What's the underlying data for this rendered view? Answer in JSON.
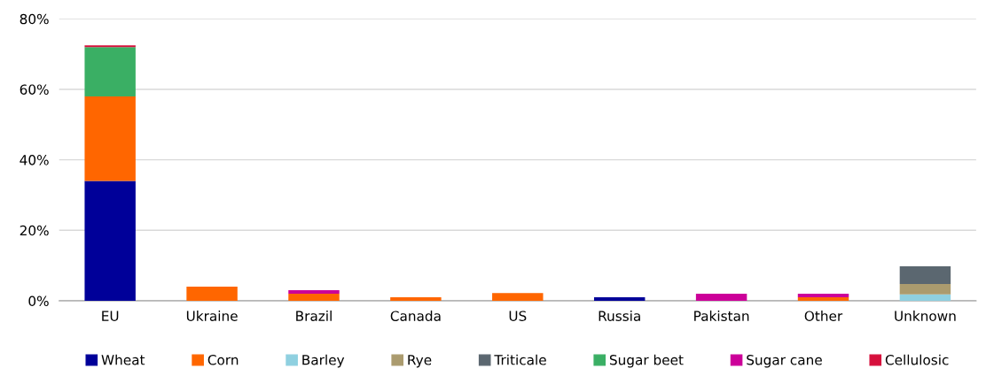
{
  "chart_data": {
    "type": "bar",
    "stacked": true,
    "categories": [
      "EU",
      "Ukraine",
      "Brazil",
      "Canada",
      "US",
      "Russia",
      "Pakistan",
      "Other",
      "Unknown"
    ],
    "series": [
      {
        "name": "Wheat",
        "color": "#000099",
        "values": [
          34,
          0,
          0,
          0,
          0,
          1,
          0,
          0,
          0
        ]
      },
      {
        "name": "Corn",
        "color": "#ff6600",
        "values": [
          24,
          4,
          2,
          1,
          2.2,
          0,
          0,
          1,
          0
        ]
      },
      {
        "name": "Barley",
        "color": "#8fd0e0",
        "values": [
          0,
          0,
          0,
          0,
          0,
          0,
          0,
          0,
          1.8
        ]
      },
      {
        "name": "Rye",
        "color": "#ab9b6e",
        "values": [
          0,
          0,
          0,
          0,
          0,
          0,
          0,
          0,
          3
        ]
      },
      {
        "name": "Triticale",
        "color": "#5b6770",
        "values": [
          0,
          0,
          0,
          0,
          0,
          0,
          0,
          0,
          5
        ]
      },
      {
        "name": "Sugar beet",
        "color": "#3aaf64",
        "values": [
          14,
          0,
          0,
          0,
          0,
          0,
          0,
          0,
          0
        ]
      },
      {
        "name": "Sugar cane",
        "color": "#cc0099",
        "values": [
          0,
          0,
          1,
          0,
          0,
          0,
          2,
          1,
          0
        ]
      },
      {
        "name": "Cellulosic",
        "color": "#d6103c",
        "values": [
          0.5,
          0,
          0,
          0,
          0,
          0,
          0,
          0,
          0
        ]
      }
    ],
    "ylim": [
      0,
      80
    ],
    "yticks": [
      {
        "value": 0,
        "label": "0%"
      },
      {
        "value": 20,
        "label": "20%"
      },
      {
        "value": 40,
        "label": "40%"
      },
      {
        "value": 60,
        "label": "60%"
      },
      {
        "value": 80,
        "label": "80%"
      }
    ],
    "grid": "y",
    "legend": "bottom"
  }
}
